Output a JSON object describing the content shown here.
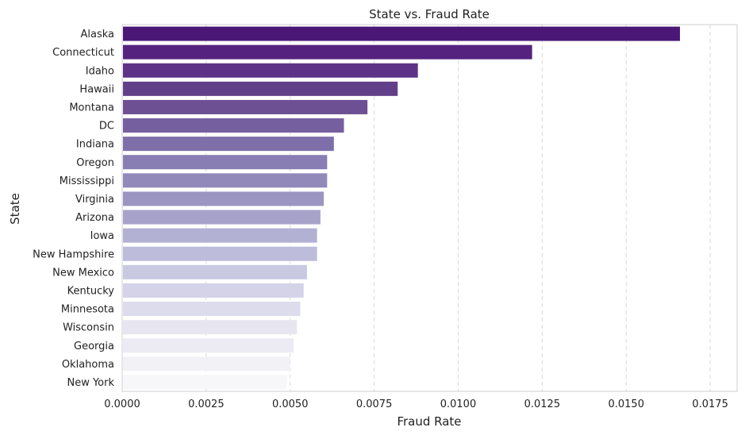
{
  "chart_data": {
    "type": "bar",
    "orientation": "horizontal",
    "title": "State vs. Fraud Rate",
    "xlabel": "Fraud Rate",
    "ylabel": "State",
    "xlim": [
      0,
      0.0183
    ],
    "xticks": [
      "0.0000",
      "0.0025",
      "0.0050",
      "0.0075",
      "0.0100",
      "0.0125",
      "0.0150",
      "0.0175"
    ],
    "grid": "x-dashed",
    "categories": [
      "Alaska",
      "Connecticut",
      "Idaho",
      "Hawaii",
      "Montana",
      "DC",
      "Indiana",
      "Oregon",
      "Mississippi",
      "Virginia",
      "Arizona",
      "Iowa",
      "New Hampshire",
      "New Mexico",
      "Kentucky",
      "Minnesota",
      "Wisconsin",
      "Georgia",
      "Oklahoma",
      "New York"
    ],
    "values": [
      0.0166,
      0.0122,
      0.0088,
      0.0082,
      0.0073,
      0.0066,
      0.0063,
      0.0061,
      0.0061,
      0.006,
      0.0059,
      0.0058,
      0.0058,
      0.0055,
      0.0054,
      0.0053,
      0.0052,
      0.0051,
      0.005,
      0.0049
    ],
    "colors": [
      "#4b1777",
      "#55237f",
      "#5e3286",
      "#624089",
      "#6d5094",
      "#765f9f",
      "#7e6faa",
      "#887eb3",
      "#9189ba",
      "#9b95c2",
      "#a6a2ca",
      "#b2b0d3",
      "#bdbcdb",
      "#c9c9e1",
      "#d5d3e8",
      "#dddcec",
      "#e7e6f0",
      "#eceaf3",
      "#f2f1f6",
      "#f7f6f9"
    ]
  }
}
